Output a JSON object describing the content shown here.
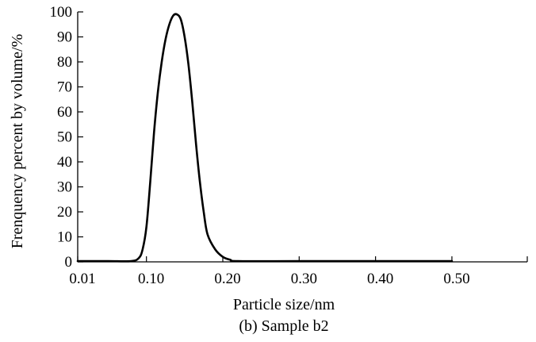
{
  "chart_data": {
    "type": "line",
    "xlabel": "Particle size/nm",
    "ylabel": "Frenquency percent by volume/%",
    "caption": "(b) Sample b2",
    "xlim": [
      0.01,
      0.6
    ],
    "ylim": [
      0,
      100
    ],
    "x_ticks": [
      {
        "value": 0.01,
        "label": "0.01"
      },
      {
        "value": 0.1,
        "label": "0.10"
      },
      {
        "value": 0.2,
        "label": "0.20"
      },
      {
        "value": 0.3,
        "label": "0.30"
      },
      {
        "value": 0.4,
        "label": "0.40"
      },
      {
        "value": 0.5,
        "label": "0.50"
      }
    ],
    "y_ticks": [
      {
        "value": 0,
        "label": "0"
      },
      {
        "value": 10,
        "label": "10"
      },
      {
        "value": 20,
        "label": "20"
      },
      {
        "value": 30,
        "label": "30"
      },
      {
        "value": 40,
        "label": "40"
      },
      {
        "value": 50,
        "label": "50"
      },
      {
        "value": 60,
        "label": "60"
      },
      {
        "value": 70,
        "label": "70"
      },
      {
        "value": 80,
        "label": "80"
      },
      {
        "value": 90,
        "label": "90"
      },
      {
        "value": 100,
        "label": "100"
      }
    ],
    "grid": false,
    "series": [
      {
        "color": "#000000",
        "points": [
          [
            0.01,
            0.3
          ],
          [
            0.05,
            0.3
          ],
          [
            0.08,
            0.3
          ],
          [
            0.09,
            1.5
          ],
          [
            0.095,
            5
          ],
          [
            0.1,
            14
          ],
          [
            0.105,
            32
          ],
          [
            0.11,
            52
          ],
          [
            0.115,
            68
          ],
          [
            0.12,
            80
          ],
          [
            0.125,
            89
          ],
          [
            0.13,
            95
          ],
          [
            0.135,
            98.5
          ],
          [
            0.14,
            99
          ],
          [
            0.145,
            97
          ],
          [
            0.15,
            90
          ],
          [
            0.155,
            79
          ],
          [
            0.16,
            64
          ],
          [
            0.165,
            47
          ],
          [
            0.17,
            32
          ],
          [
            0.175,
            20
          ],
          [
            0.18,
            11
          ],
          [
            0.19,
            5
          ],
          [
            0.2,
            2
          ],
          [
            0.21,
            0.8
          ],
          [
            0.22,
            0.3
          ],
          [
            0.3,
            0.3
          ],
          [
            0.4,
            0.3
          ],
          [
            0.5,
            0.3
          ],
          [
            0.6,
            0.3
          ]
        ]
      }
    ]
  }
}
